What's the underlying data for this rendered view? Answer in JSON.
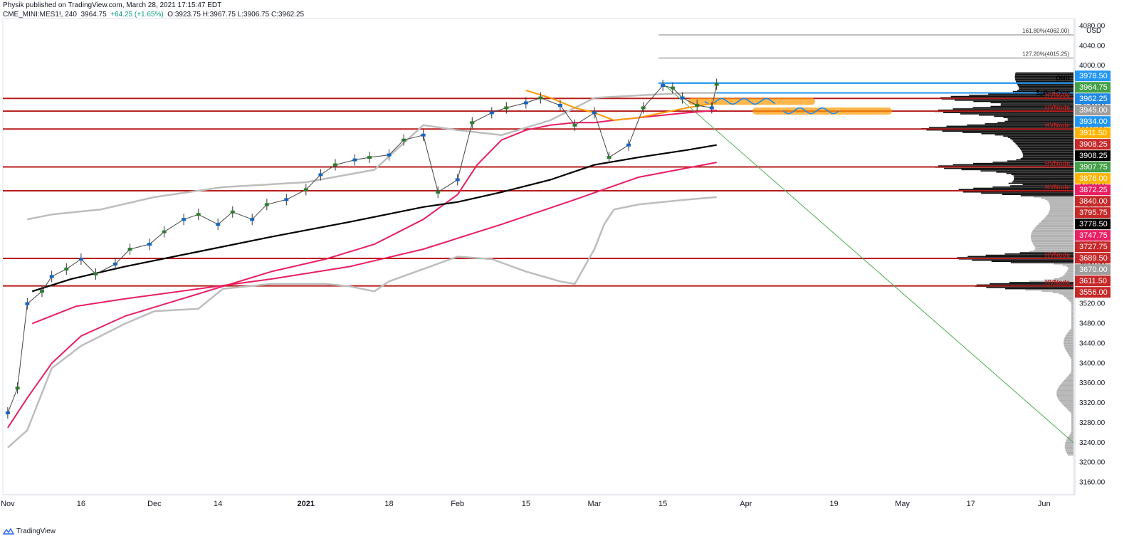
{
  "header": {
    "publisher_line": "Physik published on TradingView.com, March 28, 2021 17:15:47 EDT",
    "symbol": "CME_MINI:MES1!, 240",
    "last": "3964.75",
    "change": "+64.25 (+1.65%)",
    "ohlc": "O:3923.75 H:3967.75 L:3906.75 C:3962.25"
  },
  "footer": {
    "brand": "TradingView",
    "brand_icon": "tradingview-logo-icon"
  },
  "colors": {
    "price_line": "#b71c1c",
    "ema_fast": "#e91e63",
    "ema_slow": "#000000",
    "vwap": "#bdbdbd",
    "orange": "#ff9800",
    "blue": "#1e88e5",
    "green_diag": "#4caf50"
  },
  "chart_data": {
    "type": "line",
    "title": "",
    "y_axis_label": "USD",
    "ylim": [
      3135,
      4095
    ],
    "y_ticks": [
      3160,
      3200,
      3240,
      3280,
      3320,
      3360,
      3400,
      3440,
      3480,
      3520,
      3560,
      3600,
      3640,
      3680,
      3720,
      3760,
      3800,
      3840,
      3880,
      3920,
      3960,
      4000,
      4040,
      4080
    ],
    "y_tick_labels": [
      "3160.00",
      "3200.00",
      "3240.00",
      "3280.00",
      "3320.00",
      "3360.00",
      "3400.00",
      "3440.00",
      "3480.00",
      "3520.00",
      "3560.00",
      "3600.00",
      "3640.00",
      "3680.00",
      "3720.00",
      "3760.00",
      "3800.00",
      "3840.00",
      "3880.00",
      "3920.00",
      "3960.00",
      "4000.00",
      "4040.00",
      "4080.00"
    ],
    "x_axis": {
      "start": "2020-10-31",
      "end": "2021-06-07",
      "ticks": [
        {
          "date": "2020-11-01",
          "label": "Nov"
        },
        {
          "date": "2020-11-16",
          "label": "16"
        },
        {
          "date": "2020-12-01",
          "label": "Dec"
        },
        {
          "date": "2020-12-14",
          "label": "14"
        },
        {
          "date": "2021-01-01",
          "label": "2021"
        },
        {
          "date": "2021-01-18",
          "label": "18"
        },
        {
          "date": "2021-02-01",
          "label": "Feb"
        },
        {
          "date": "2021-02-15",
          "label": "15"
        },
        {
          "date": "2021-03-01",
          "label": "Mar"
        },
        {
          "date": "2021-03-15",
          "label": "15"
        },
        {
          "date": "2021-04-01",
          "label": "Apr"
        },
        {
          "date": "2021-04-19",
          "label": "19"
        },
        {
          "date": "2021-05-03",
          "label": "May"
        },
        {
          "date": "2021-05-17",
          "label": "17"
        },
        {
          "date": "2021-06-01",
          "label": "Jun"
        }
      ]
    },
    "price_series": {
      "name": "",
      "x": [
        "2020-11-01",
        "2020-11-03",
        "2020-11-05",
        "2020-11-08",
        "2020-11-10",
        "2020-11-13",
        "2020-11-16",
        "2020-11-19",
        "2020-11-23",
        "2020-11-26",
        "2020-11-30",
        "2020-12-03",
        "2020-12-07",
        "2020-12-10",
        "2020-12-14",
        "2020-12-17",
        "2020-12-21",
        "2020-12-24",
        "2020-12-28",
        "2021-01-01",
        "2021-01-04",
        "2021-01-07",
        "2021-01-11",
        "2021-01-14",
        "2021-01-18",
        "2021-01-21",
        "2021-01-25",
        "2021-01-28",
        "2021-02-01",
        "2021-02-04",
        "2021-02-08",
        "2021-02-11",
        "2021-02-15",
        "2021-02-18",
        "2021-02-22",
        "2021-02-25",
        "2021-03-01",
        "2021-03-04",
        "2021-03-08",
        "2021-03-11",
        "2021-03-15",
        "2021-03-17",
        "2021-03-19",
        "2021-03-22",
        "2021-03-25",
        "2021-03-26"
      ],
      "y": [
        3300,
        3350,
        3520,
        3545,
        3575,
        3590,
        3610,
        3580,
        3600,
        3630,
        3640,
        3665,
        3690,
        3700,
        3680,
        3705,
        3690,
        3720,
        3730,
        3750,
        3780,
        3800,
        3810,
        3815,
        3820,
        3850,
        3860,
        3745,
        3770,
        3885,
        3905,
        3915,
        3925,
        3935,
        3920,
        3880,
        3905,
        3815,
        3840,
        3915,
        3960,
        3955,
        3935,
        3920,
        3915,
        3962.25
      ]
    },
    "overlays": [
      {
        "name": "",
        "color": "#e91e63",
        "x": [
          "2020-11-01",
          "2020-11-05",
          "2020-11-10",
          "2020-11-16",
          "2020-11-25",
          "2020-12-05",
          "2020-12-15",
          "2020-12-25",
          "2021-01-05",
          "2021-01-15",
          "2021-01-25",
          "2021-02-01",
          "2021-02-05",
          "2021-02-10",
          "2021-02-15",
          "2021-02-20",
          "2021-02-25",
          "2021-03-01",
          "2021-03-05",
          "2021-03-10",
          "2021-03-15",
          "2021-03-20",
          "2021-03-26"
        ],
        "y": [
          3270,
          3330,
          3400,
          3455,
          3495,
          3525,
          3555,
          3585,
          3610,
          3640,
          3690,
          3740,
          3800,
          3850,
          3870,
          3880,
          3885,
          3885,
          3890,
          3895,
          3900,
          3905,
          3910
        ]
      },
      {
        "name": "",
        "color": "#000000",
        "x": [
          "2020-11-06",
          "2020-11-14",
          "2020-11-25",
          "2020-12-10",
          "2020-12-25",
          "2021-01-10",
          "2021-01-25",
          "2021-02-01",
          "2021-02-10",
          "2021-02-20",
          "2021-03-01",
          "2021-03-10",
          "2021-03-20",
          "2021-03-26"
        ],
        "y": [
          3545,
          3570,
          3595,
          3625,
          3655,
          3685,
          3715,
          3725,
          3745,
          3770,
          3800,
          3815,
          3830,
          3840
        ]
      },
      {
        "name": "",
        "color": "#e91e63",
        "x": [
          "2020-11-06",
          "2020-11-15",
          "2020-11-25",
          "2020-12-10",
          "2020-12-25",
          "2021-01-10",
          "2021-01-25",
          "2021-02-10",
          "2021-02-25",
          "2021-03-10",
          "2021-03-26"
        ],
        "y": [
          3480,
          3515,
          3530,
          3550,
          3570,
          3595,
          3630,
          3680,
          3730,
          3775,
          3805
        ]
      },
      {
        "name": "",
        "color": "#bdbdbd",
        "x": [
          "2020-11-01",
          "2020-11-05",
          "2020-11-10",
          "2020-11-16",
          "2020-11-25",
          "2020-12-01",
          "2020-12-10",
          "2020-12-15",
          "2020-12-25",
          "2021-01-05",
          "2021-01-10",
          "2021-01-15",
          "2021-01-18",
          "2021-01-25",
          "2021-02-01",
          "2021-02-08",
          "2021-02-15",
          "2021-02-22",
          "2021-02-25",
          "2021-03-01",
          "2021-03-03",
          "2021-03-05",
          "2021-03-10",
          "2021-03-15",
          "2021-03-20",
          "2021-03-26"
        ],
        "y": [
          3230,
          3265,
          3390,
          3435,
          3480,
          3505,
          3510,
          3550,
          3560,
          3560,
          3555,
          3545,
          3565,
          3590,
          3615,
          3610,
          3585,
          3565,
          3560,
          3630,
          3680,
          3710,
          3720,
          3725,
          3730,
          3735
        ]
      },
      {
        "name": "",
        "color": "#bdbdbd",
        "x": [
          "2020-11-05",
          "2020-11-10",
          "2020-11-20",
          "2020-12-01",
          "2020-12-15",
          "2021-01-01",
          "2021-01-15",
          "2021-01-25",
          "2021-02-01",
          "2021-02-10",
          "2021-02-20",
          "2021-03-01",
          "2021-03-10",
          "2021-03-20",
          "2021-03-26"
        ],
        "y": [
          3690,
          3700,
          3710,
          3735,
          3755,
          3765,
          3790,
          3880,
          3870,
          3860,
          3890,
          3935,
          3940,
          3945,
          3945
        ]
      },
      {
        "name": "",
        "color": "#ff9800",
        "x": [
          "2021-02-15",
          "2021-02-20",
          "2021-02-25",
          "2021-03-01",
          "2021-03-05",
          "2021-03-10",
          "2021-03-15",
          "2021-03-20",
          "2021-03-26"
        ],
        "y": [
          3950,
          3935,
          3915,
          3905,
          3890,
          3895,
          3905,
          3915,
          3925
        ]
      }
    ],
    "horizontal_levels": [
      3934,
      3908.25,
      3872.25,
      3795.75,
      3747.75,
      3611.5,
      3556
    ],
    "volume_profile_nodes": [
      {
        "price": 3934,
        "label": "HVNode"
      },
      {
        "price": 3908.25,
        "label": "HVNode"
      },
      {
        "price": 3872.25,
        "label": "HVNode"
      },
      {
        "price": 3795.75,
        "label": "HVNode"
      },
      {
        "price": 3747.75,
        "label": "HVNode"
      },
      {
        "price": 3611.5,
        "label": "HVNode"
      },
      {
        "price": 3556,
        "label": "HVNode"
      }
    ],
    "annotations": {
      "onh": {
        "label": "ONH",
        "price": 3964.75
      },
      "spike_base": {
        "label": "Spike Base",
        "price": 3945
      },
      "fib_levels": [
        {
          "label": "161.80%(4062.00)",
          "price": 4062
        },
        {
          "label": "127.20%(4015.25)",
          "price": 4015.25
        }
      ]
    },
    "price_badges": [
      {
        "label": "3978.50",
        "price": 3978.5,
        "color": "#2196f3"
      },
      {
        "label": "3964.75",
        "price": 3964.75,
        "color": "#43a047"
      },
      {
        "label": "3962.25",
        "price": 3962.25,
        "color": "#1e88e5"
      },
      {
        "label": "3945.00",
        "price": 3945,
        "color": "#9e9e9e"
      },
      {
        "label": "3934.00",
        "price": 3934,
        "color": "#2196f3"
      },
      {
        "label": "3911.50",
        "price": 3911.5,
        "color": "#ffb300"
      },
      {
        "label": "3908.25",
        "price": 3908.25,
        "color": "#c62828"
      },
      {
        "label": "3908.25",
        "price": 3908.25,
        "color": "#000000"
      },
      {
        "label": "3907.75",
        "price": 3907.75,
        "color": "#43a047"
      },
      {
        "label": "3876.00",
        "price": 3876,
        "color": "#ffb300"
      },
      {
        "label": "3872.25",
        "price": 3872.25,
        "color": "#e91e63"
      },
      {
        "label": "3840.00",
        "price": 3840,
        "color": "#c62828"
      },
      {
        "label": "3795.75",
        "price": 3795.75,
        "color": "#c62828"
      },
      {
        "label": "3778.50",
        "price": 3778.5,
        "color": "#000000"
      },
      {
        "label": "3747.75",
        "price": 3747.75,
        "color": "#e91e63"
      },
      {
        "label": "3727.75",
        "price": 3727.75,
        "color": "#c62828"
      },
      {
        "label": "3689.50",
        "price": 3689.5,
        "color": "#c62828"
      },
      {
        "label": "3670.00",
        "price": 3670,
        "color": "#9e9e9e"
      },
      {
        "label": "3611.50",
        "price": 3611.5,
        "color": "#c62828"
      },
      {
        "label": "3556.00",
        "price": 3556,
        "color": "#c62828"
      }
    ]
  }
}
